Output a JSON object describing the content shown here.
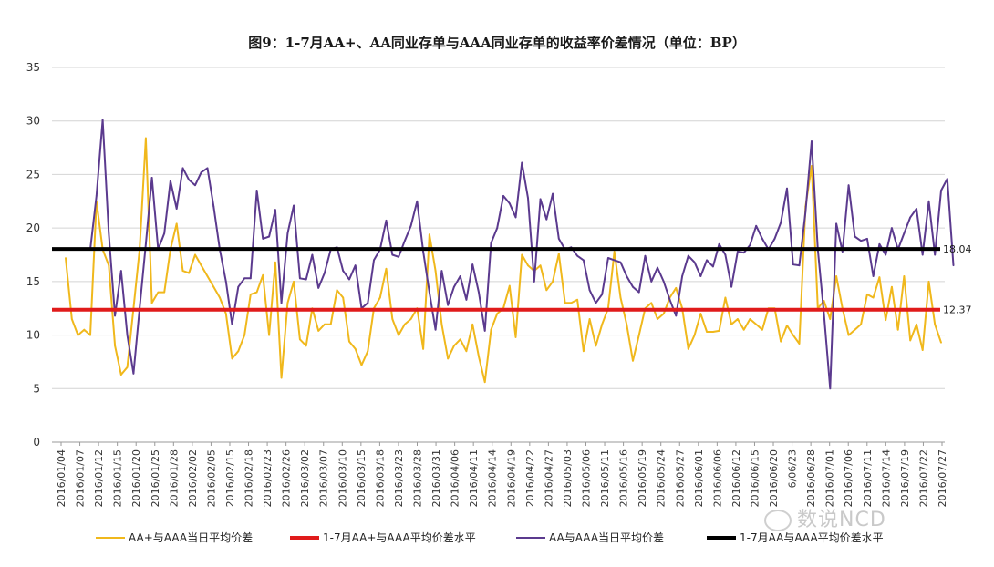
{
  "watermark": "数说NCD",
  "chart_data": {
    "type": "line",
    "title": "图9：1-7月AA+、AA同业存单与AAA同业存单的收益率价差情况（单位：BP）",
    "xlabel": "",
    "ylabel": "",
    "ylim": [
      0,
      35
    ],
    "yticks": [
      0,
      5,
      10,
      15,
      20,
      25,
      30,
      35
    ],
    "grid": true,
    "legend_position": "bottom",
    "x_tick_labels": [
      "2016/01/04",
      "2016/01/07",
      "2016/01/12",
      "2016/01/15",
      "2016/01/20",
      "2016/01/25",
      "2016/01/28",
      "2016/02/02",
      "2016/02/05",
      "2016/02/15",
      "2016/02/18",
      "2016/02/23",
      "2016/02/26",
      "2016/03/02",
      "2016/03/07",
      "2016/03/10",
      "2016/03/15",
      "2016/03/18",
      "2016/03/23",
      "2016/03/28",
      "2016/03/31",
      "2016/04/06",
      "2016/04/11",
      "2016/04/14",
      "2016/04/19",
      "2016/04/22",
      "2016/04/27",
      "2016/05/03",
      "2016/05/06",
      "2016/05/11",
      "2016/05/16",
      "2016/05/19",
      "2016/05/24",
      "2016/05/27",
      "2016/06/01",
      "2016/06/06",
      "2016/06/12",
      "2016/06/15",
      "2016/06/20",
      "6/06/23",
      "2016/06/28",
      "2016/07/01",
      "2016/07/06",
      "2016/07/11",
      "2016/07/14",
      "2016/07/19",
      "2016/07/22",
      "2016/07/27"
    ],
    "series": [
      {
        "name": "AA+与AAA当日平均价差",
        "color": "#f0b81c",
        "values": [
          17.2,
          11.5,
          10.0,
          10.5,
          10.0,
          22.5,
          18.0,
          16.5,
          9.0,
          6.3,
          7.0,
          12.5,
          18.0,
          28.4,
          13.0,
          14.0,
          14.0,
          18.0,
          20.4,
          16.0,
          15.8,
          17.5,
          16.5,
          15.5,
          14.5,
          13.5,
          12.0,
          7.8,
          8.5,
          10.0,
          13.8,
          14.0,
          15.6,
          10.0,
          16.8,
          6.0,
          13.0,
          15.0,
          9.6,
          9.0,
          12.5,
          10.4,
          11.0,
          11.0,
          14.2,
          13.5,
          9.4,
          8.7,
          7.2,
          8.5,
          12.5,
          13.5,
          16.2,
          11.5,
          10.0,
          11.0,
          11.5,
          12.5,
          8.7,
          19.4,
          16.0,
          11.0,
          7.8,
          9.0,
          9.6,
          8.5,
          11.0,
          8.0,
          5.6,
          10.5,
          12.0,
          12.5,
          14.6,
          9.8,
          17.5,
          16.5,
          16.0,
          16.5,
          14.2,
          15.0,
          17.6,
          13.0,
          13.0,
          13.3,
          8.5,
          11.5,
          9.0,
          11.0,
          12.5,
          17.8,
          13.5,
          11.0,
          7.6,
          10.0,
          12.5,
          13.0,
          11.5,
          12.0,
          13.5,
          14.4,
          12.5,
          8.7,
          10.0,
          12.0,
          10.3,
          10.3,
          10.4,
          13.5,
          11.0,
          11.5,
          10.5,
          11.5,
          11.0,
          10.5,
          12.5,
          12.5,
          9.4,
          10.9,
          10.0,
          9.2,
          22.0,
          25.8,
          12.5,
          13.2,
          11.5,
          15.5,
          12.5,
          10.0,
          10.5,
          11.0,
          13.8,
          13.5,
          15.4,
          11.4,
          14.5,
          10.5,
          15.5,
          9.5,
          11.0,
          8.6,
          15.0,
          11.0,
          9.3
        ]
      },
      {
        "name": "1-7月AA+与AAA平均价差水平",
        "color": "#e01b1b",
        "constant": 12.37,
        "label": "12.37"
      },
      {
        "name": "AA与AAA当日平均价差",
        "color": "#5b3a8e",
        "values": [
          null,
          null,
          null,
          null,
          18.0,
          23.0,
          30.1,
          19.5,
          11.8,
          16.0,
          10.0,
          6.4,
          12.5,
          18.5,
          24.7,
          18.0,
          19.5,
          24.4,
          21.8,
          25.6,
          24.5,
          24.0,
          25.2,
          25.6,
          22.0,
          18.0,
          15.0,
          11.0,
          14.5,
          15.3,
          15.3,
          23.5,
          19.0,
          19.2,
          21.7,
          13.0,
          19.5,
          22.1,
          15.3,
          15.2,
          17.5,
          14.4,
          15.8,
          18.0,
          18.2,
          16.0,
          15.2,
          16.5,
          12.5,
          13.0,
          17.0,
          18.0,
          20.7,
          17.5,
          17.3,
          18.8,
          20.2,
          22.5,
          17.8,
          14.0,
          10.5,
          16.0,
          12.8,
          14.5,
          15.5,
          13.3,
          16.6,
          14.0,
          10.4,
          18.6,
          20.0,
          23.0,
          22.3,
          21.0,
          26.1,
          22.8,
          15.0,
          22.7,
          20.8,
          23.2,
          19.0,
          18.0,
          18.2,
          17.4,
          17.0,
          14.2,
          13.0,
          13.8,
          17.2,
          17.0,
          16.8,
          15.5,
          14.5,
          14.0,
          17.4,
          15.0,
          16.3,
          15.0,
          13.3,
          11.8,
          15.5,
          17.4,
          16.8,
          15.5,
          17.0,
          16.4,
          18.5,
          17.5,
          14.5,
          17.8,
          17.7,
          18.4,
          20.2,
          19.0,
          18.0,
          19.0,
          20.5,
          23.7,
          16.6,
          16.5,
          21.5,
          28.1,
          18.0,
          12.0,
          5.0,
          20.4,
          17.8,
          24.0,
          19.2,
          18.8,
          19.0,
          15.5,
          18.5,
          17.5,
          20.0,
          18.0,
          19.5,
          21.0,
          21.8,
          17.5,
          22.5,
          17.5,
          23.5,
          24.6,
          16.5
        ]
      },
      {
        "name": "1-7月AA与AAA平均价差水平",
        "color": "#000000",
        "constant": 18.04,
        "label": "18.04"
      }
    ]
  }
}
